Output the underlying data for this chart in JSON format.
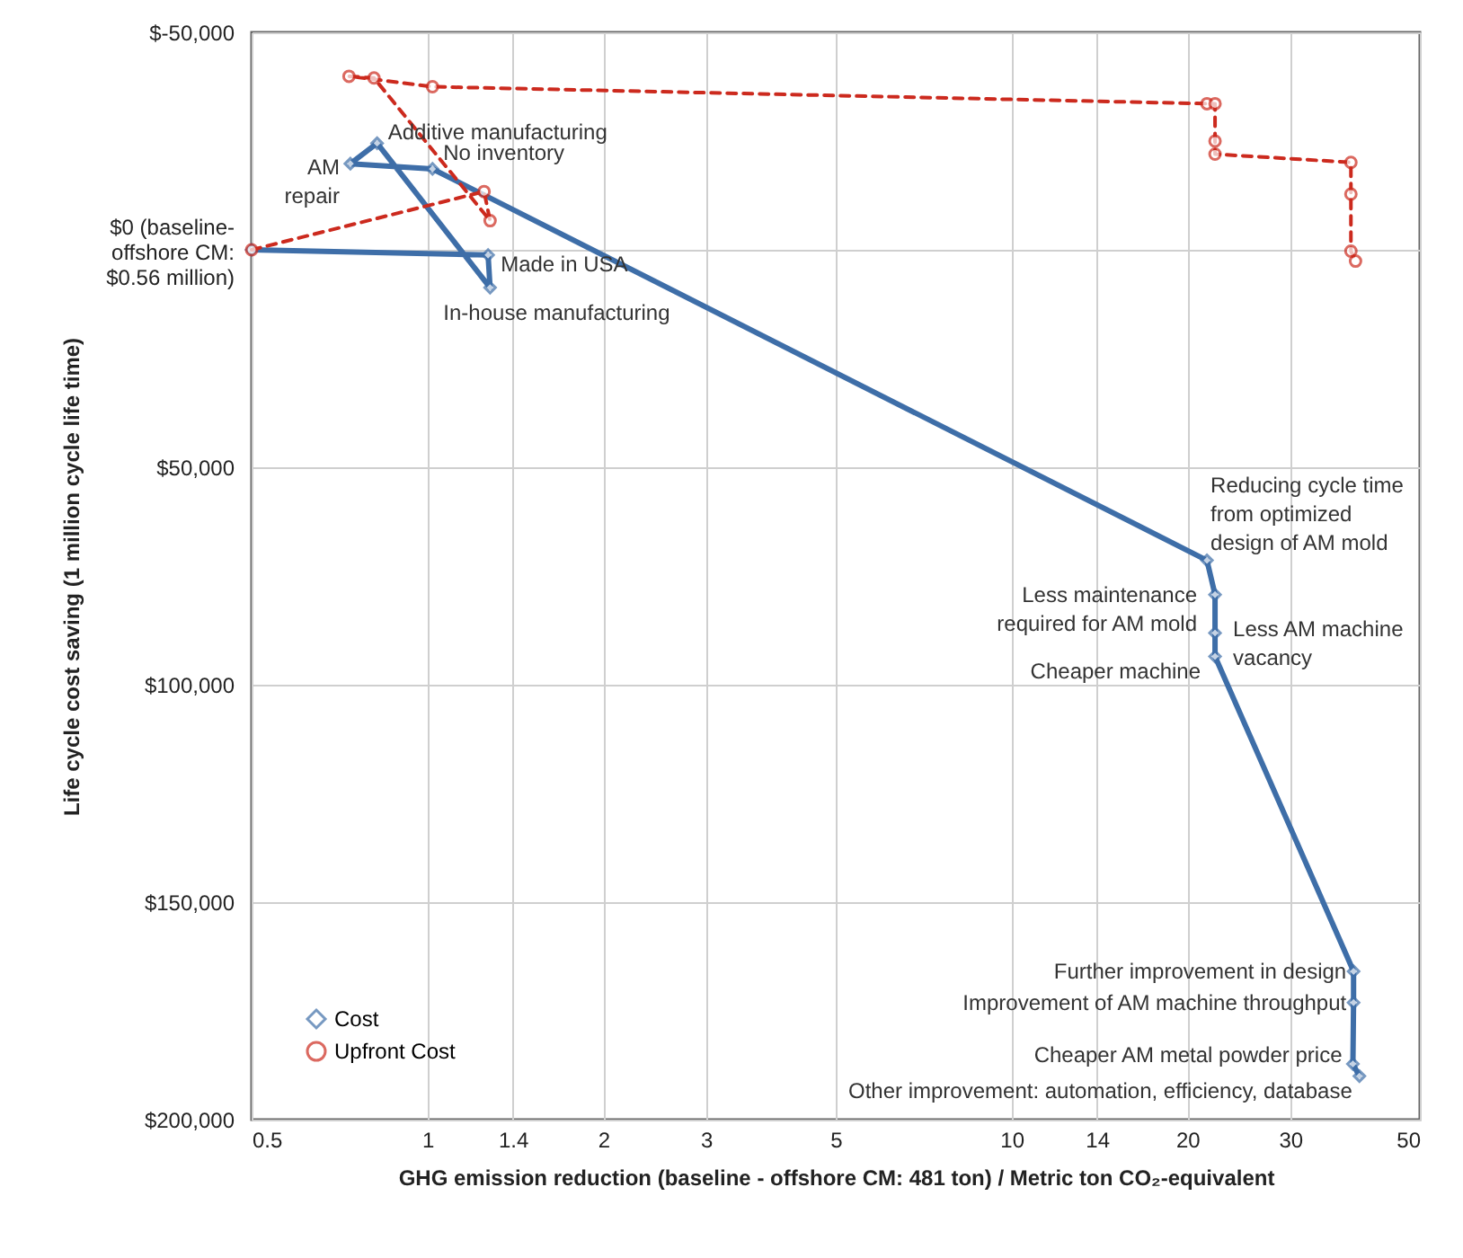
{
  "chart_data": {
    "type": "line",
    "xlabel": "GHG emission reduction (baseline - offshore CM: 481 ton) / Metric ton CO₂-equivalent",
    "ylabel": "Life cycle cost saving (1 million cycle life time)",
    "log": "x",
    "xlim": [
      0.5,
      50
    ],
    "xticks": [
      0.5,
      1,
      1.4,
      2,
      3,
      5,
      10,
      14,
      20,
      30,
      50
    ],
    "ylim": [
      200000,
      -50000
    ],
    "yticks": [
      {
        "value": -50000,
        "label": "$-50,000"
      },
      {
        "value": 0,
        "label": "$0 (baseline-\noffshore CM:\n$0.56 million)"
      },
      {
        "value": 50000,
        "label": "$50,000"
      },
      {
        "value": 100000,
        "label": "$100,000"
      },
      {
        "value": 150000,
        "label": "$150,000"
      },
      {
        "value": 200000,
        "label": "$200,000"
      }
    ],
    "grid": true,
    "legend": "bottom left",
    "series": [
      {
        "name": "Cost",
        "color": "#3e6ea8",
        "marker": "diamond",
        "line_style": "solid",
        "x": [
          0.5,
          1.27,
          1.28,
          0.82,
          0.738,
          1.02,
          21.6,
          22.3,
          22.3,
          22.3,
          38.5,
          38.5,
          38.4,
          39.4
        ],
        "values": [
          0,
          1200,
          8700,
          -24500,
          -19800,
          -18600,
          71400,
          79300,
          88100,
          93500,
          165900,
          173100,
          187200,
          190000
        ]
      },
      {
        "name": "Upfront Cost",
        "color": "#cc2a1e",
        "marker": "circle",
        "line_style": "dashed",
        "x": [
          0.5,
          1.25,
          1.28,
          0.81,
          0.734,
          1.02,
          21.6,
          22.3,
          22.3,
          22.3,
          38.1,
          38.1,
          38.1,
          38.8
        ],
        "values": [
          0,
          -13400,
          -6700,
          -39500,
          -39900,
          -37500,
          -33600,
          -33600,
          -25000,
          -22000,
          -20100,
          -12800,
          300,
          2600
        ]
      }
    ],
    "annotations": [
      {
        "text": "Made in USA",
        "x": 1.27,
        "y": 1200
      },
      {
        "text": "In-house manufacturing",
        "x": 1.28,
        "y": 8700
      },
      {
        "text": "Additive manufacturing",
        "x": 0.82,
        "y": -24500
      },
      {
        "text": "AM\nrepair",
        "x": 0.738,
        "y": -19750
      },
      {
        "text": "No inventory",
        "x": 1.02,
        "y": -18600
      },
      {
        "text": "Reducing cycle time\nfrom optimized\ndesign of AM mold",
        "x": 21.6,
        "y": 71400
      },
      {
        "text": "Less maintenance\nrequired for AM mold",
        "x": 22.3,
        "y": 79300
      },
      {
        "text": "Less AM machine\nvacancy",
        "x": 22.3,
        "y": 88100
      },
      {
        "text": "Cheaper machine",
        "x": 22.3,
        "y": 93500
      },
      {
        "text": "Further improvement in design",
        "x": 38.5,
        "y": 165900
      },
      {
        "text": "Improvement of AM machine throughput",
        "x": 38.5,
        "y": 173100
      },
      {
        "text": "Cheaper AM metal powder price",
        "x": 38.4,
        "y": 187200
      },
      {
        "text": "Other improvement: automation, efficiency, database",
        "x": 39.4,
        "y": 190000
      }
    ]
  }
}
